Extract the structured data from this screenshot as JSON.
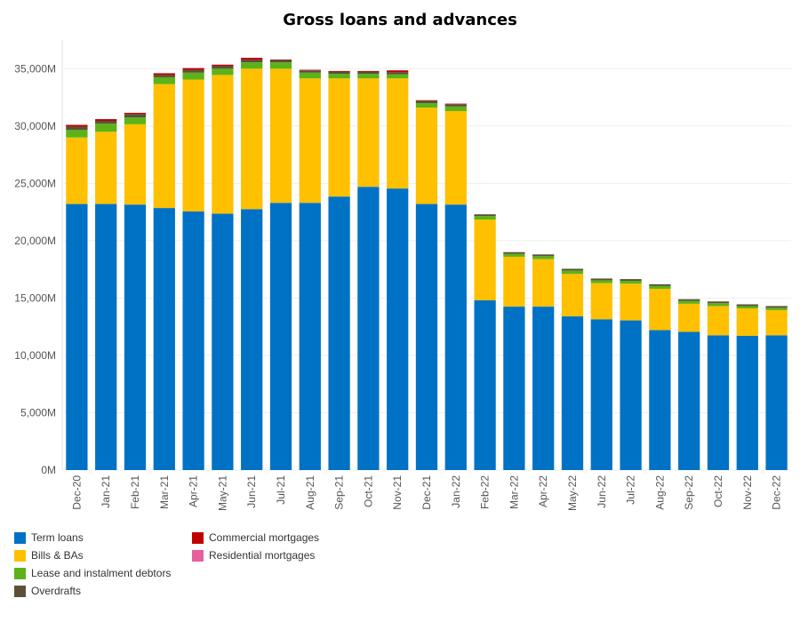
{
  "chart_data": {
    "type": "bar",
    "stacked": true,
    "title": "Gross loans and advances",
    "categories": [
      "Dec-20",
      "Jan-21",
      "Feb-21",
      "Mar-21",
      "Apr-21",
      "May-21",
      "Jun-21",
      "Jul-21",
      "Aug-21",
      "Sep-21",
      "Oct-21",
      "Nov-21",
      "Dec-21",
      "Jan-22",
      "Feb-22",
      "Mar-22",
      "Apr-22",
      "May-22",
      "Jun-22",
      "Jul-22",
      "Aug-22",
      "Sep-22",
      "Oct-22",
      "Nov-22",
      "Dec-22"
    ],
    "ylim": [
      0,
      37500
    ],
    "yticks": [
      0,
      5000,
      10000,
      15000,
      20000,
      25000,
      30000,
      35000
    ],
    "ytick_labels": [
      "0M",
      "5,000M",
      "10,000M",
      "15,000M",
      "20,000M",
      "25,000M",
      "30,000M",
      "35,000M"
    ],
    "grid": true,
    "legend_position": "bottom-left",
    "series": [
      {
        "name": "Term loans",
        "color": "#0072C6",
        "values": [
          23200,
          23200,
          23150,
          22850,
          22550,
          22350,
          22750,
          23300,
          23300,
          23850,
          24700,
          24550,
          23200,
          23150,
          14800,
          14250,
          14250,
          13400,
          13150,
          13050,
          12200,
          12050,
          11750,
          11700,
          11750
        ]
      },
      {
        "name": "Bills & BAs",
        "color": "#FFC000",
        "values": [
          5800,
          6300,
          7000,
          10800,
          11500,
          12100,
          12250,
          11700,
          10850,
          10300,
          9450,
          9600,
          8400,
          8150,
          7050,
          4350,
          4150,
          3700,
          3150,
          3200,
          3600,
          2450,
          2550,
          2400,
          2200
        ]
      },
      {
        "name": "Lease and instalment debtors",
        "color": "#5BB318",
        "values": [
          650,
          700,
          600,
          600,
          600,
          550,
          550,
          550,
          500,
          400,
          400,
          350,
          400,
          400,
          300,
          250,
          250,
          300,
          250,
          250,
          250,
          250,
          250,
          200,
          200
        ]
      },
      {
        "name": "Overdrafts",
        "color": "#5C5039",
        "values": [
          300,
          250,
          300,
          200,
          250,
          250,
          250,
          200,
          200,
          200,
          200,
          200,
          200,
          200,
          150,
          150,
          150,
          150,
          150,
          150,
          150,
          150,
          150,
          150,
          150
        ]
      },
      {
        "name": "Commercial mortgages",
        "color": "#C00000",
        "values": [
          150,
          150,
          100,
          150,
          150,
          100,
          150,
          50,
          50,
          50,
          50,
          150,
          50,
          50,
          0,
          0,
          0,
          0,
          0,
          0,
          0,
          0,
          0,
          0,
          0
        ]
      },
      {
        "name": "Residential mortgages",
        "color": "#E5609C",
        "values": [
          0,
          0,
          0,
          0,
          0,
          0,
          0,
          0,
          0,
          0,
          0,
          0,
          0,
          0,
          0,
          0,
          0,
          0,
          0,
          0,
          0,
          0,
          0,
          0,
          0
        ]
      }
    ]
  }
}
